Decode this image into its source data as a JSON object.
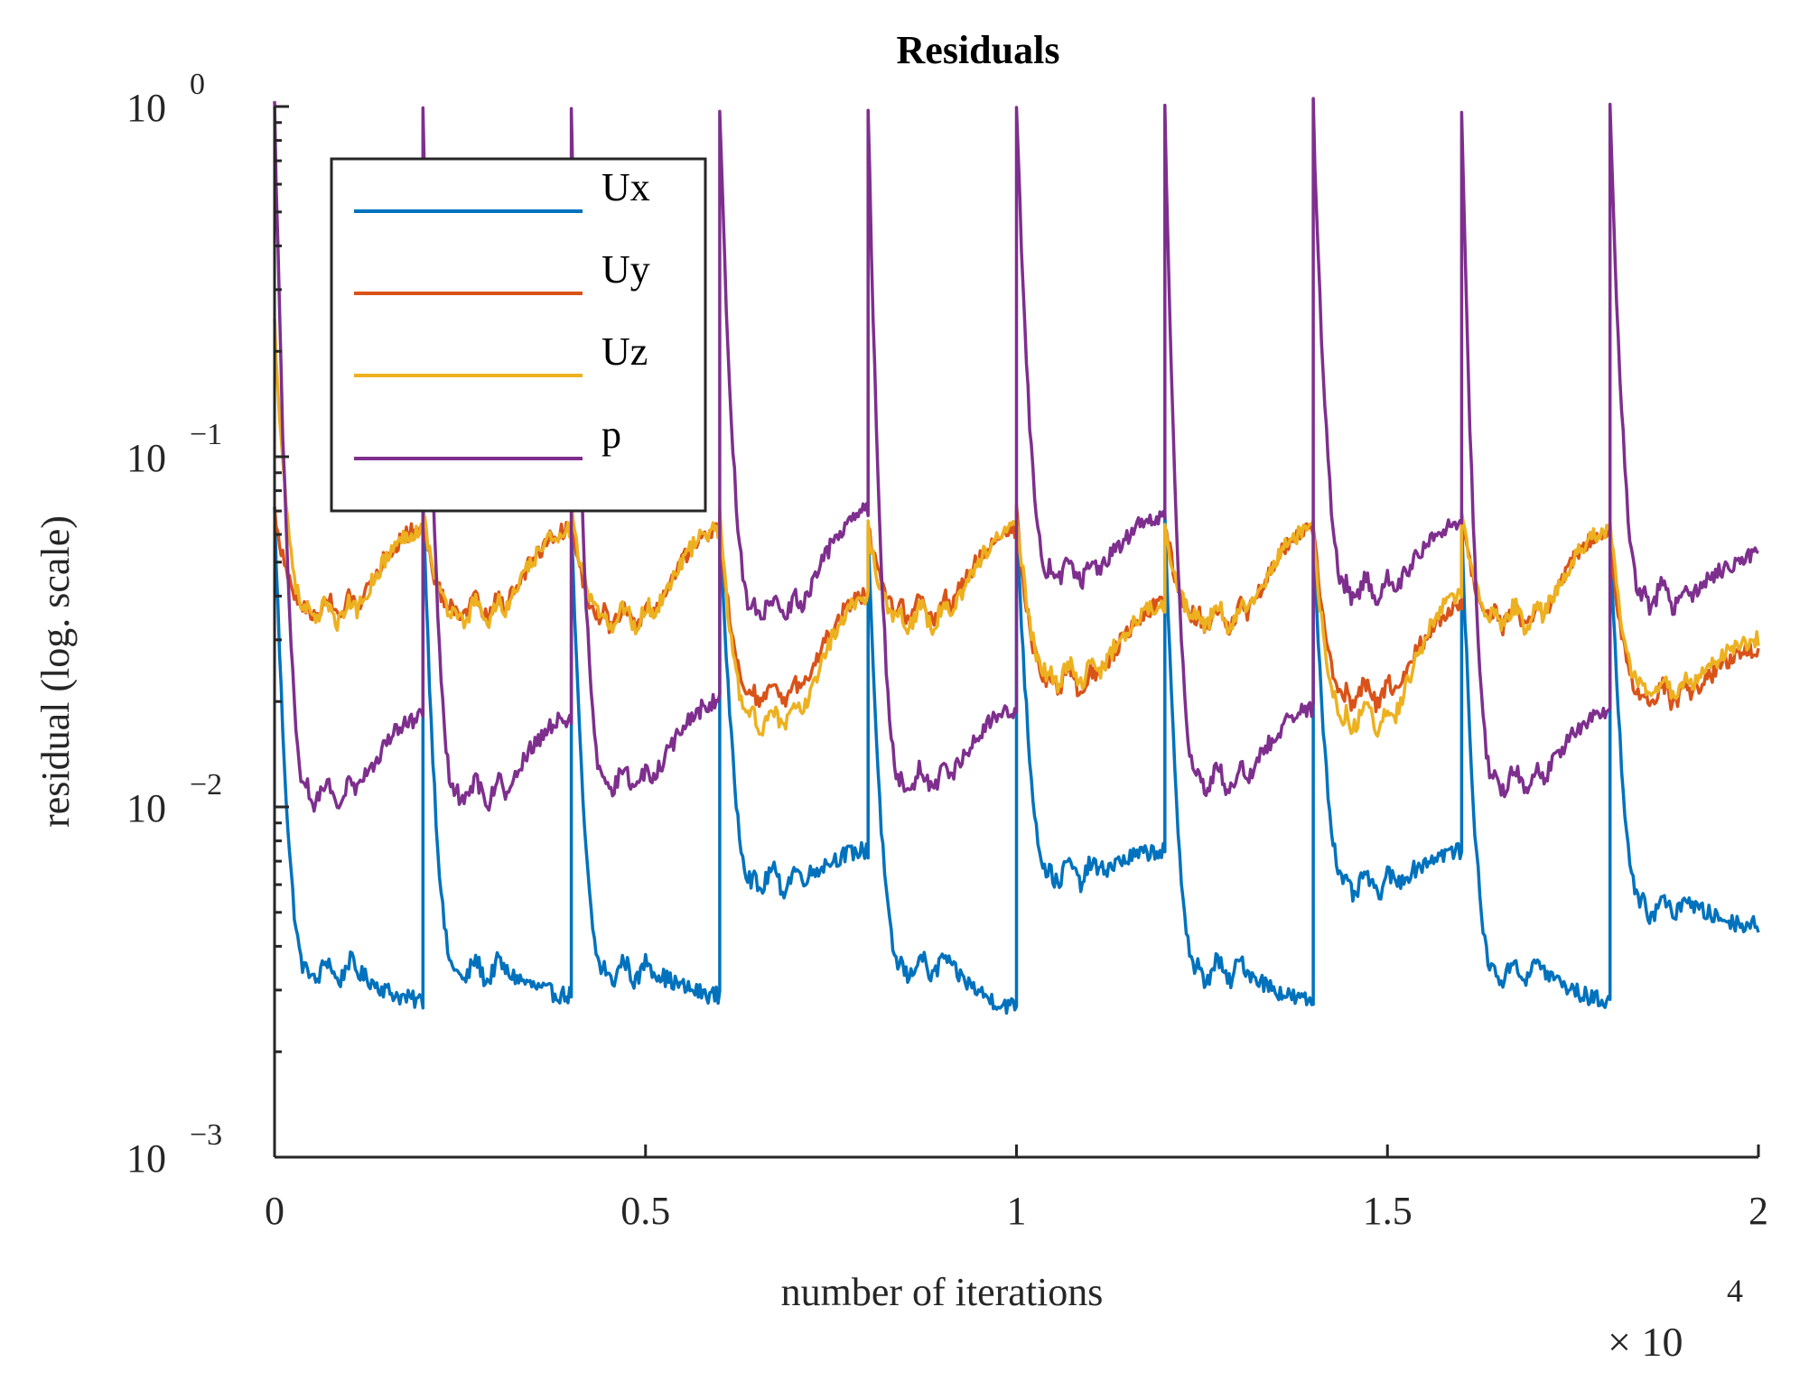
{
  "chart_data": {
    "type": "line",
    "title": "Residuals",
    "xlabel": "number of iterations",
    "ylabel": "residual (log. scale)",
    "xscale": "linear",
    "yscale": "log",
    "xlim": [
      0,
      2
    ],
    "ylim": [
      0.001,
      1
    ],
    "x_multiplier_label": {
      "base": "× 10",
      "exponent": "4"
    },
    "x_ticks": [
      {
        "value": 0,
        "label": "0"
      },
      {
        "value": 0.5,
        "label": "0.5"
      },
      {
        "value": 1,
        "label": "1"
      },
      {
        "value": 1.5,
        "label": "1.5"
      },
      {
        "value": 2,
        "label": "2"
      }
    ],
    "y_ticks": [
      {
        "value": 1,
        "base": "10",
        "exponent": "0"
      },
      {
        "value": 0.1,
        "base": "10",
        "exponent": "−1"
      },
      {
        "value": 0.01,
        "base": "10",
        "exponent": "−2"
      },
      {
        "value": 0.001,
        "base": "10",
        "exponent": "−3"
      }
    ],
    "legend_position": "top-left",
    "spike_period": 0.2,
    "series": [
      {
        "name": "Ux",
        "color": "#0072BD",
        "cycle_start_values": [
          0.07,
          0.078,
          0.065,
          0.07,
          0.062,
          0.07,
          0.065,
          0.062,
          0.065,
          0.06
        ],
        "cycle_plateau_values": [
          0.0034,
          0.0034,
          0.0034,
          0.0062,
          0.0035,
          0.0065,
          0.0034,
          0.006,
          0.0034,
          0.0052
        ],
        "cycle_end_values": [
          0.0028,
          0.0029,
          0.0029,
          0.0075,
          0.0027,
          0.0075,
          0.0028,
          0.0075,
          0.0028,
          0.0046
        ]
      },
      {
        "name": "Uy",
        "color": "#D95319",
        "cycle_start_values": [
          0.07,
          0.065,
          0.065,
          0.063,
          0.062,
          0.07,
          0.065,
          0.062,
          0.065,
          0.06
        ],
        "cycle_plateau_values": [
          0.037,
          0.037,
          0.035,
          0.021,
          0.037,
          0.023,
          0.035,
          0.021,
          0.035,
          0.021
        ],
        "cycle_end_values": [
          0.062,
          0.062,
          0.062,
          0.04,
          0.062,
          0.038,
          0.062,
          0.037,
          0.062,
          0.028
        ]
      },
      {
        "name": "Uz",
        "color": "#EDB120",
        "cycle_start_values": [
          0.24,
          0.07,
          0.07,
          0.068,
          0.062,
          0.07,
          0.065,
          0.062,
          0.07,
          0.065
        ],
        "cycle_plateau_values": [
          0.036,
          0.036,
          0.035,
          0.018,
          0.035,
          0.024,
          0.035,
          0.018,
          0.035,
          0.022
        ],
        "cycle_end_values": [
          0.062,
          0.062,
          0.062,
          0.04,
          0.062,
          0.038,
          0.062,
          0.04,
          0.062,
          0.03
        ]
      },
      {
        "name": "p",
        "color": "#7E2F8E",
        "cycle_start_values": [
          1.0,
          1.0,
          1.0,
          1.0,
          1.0,
          1.0,
          1.0,
          1.0,
          1.0,
          1.0
        ],
        "cycle_plateau_values": [
          0.011,
          0.011,
          0.012,
          0.037,
          0.012,
          0.047,
          0.012,
          0.042,
          0.012,
          0.04
        ],
        "cycle_end_values": [
          0.018,
          0.018,
          0.02,
          0.07,
          0.019,
          0.068,
          0.019,
          0.065,
          0.019,
          0.052
        ]
      }
    ]
  }
}
